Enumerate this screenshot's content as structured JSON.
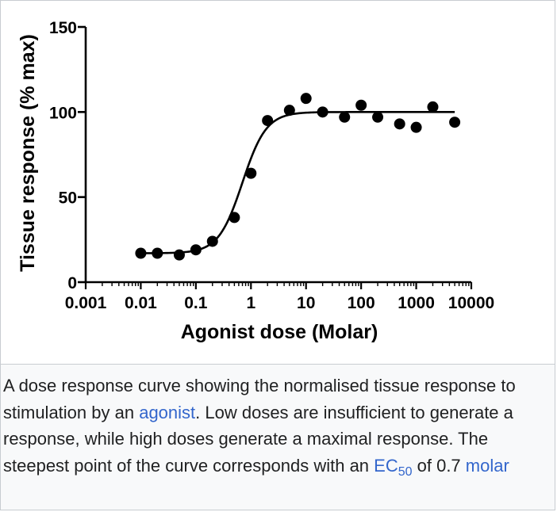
{
  "chart_data": {
    "type": "scatter",
    "title": "",
    "xlabel": "Agonist dose (Molar)",
    "ylabel": "Tissue response (% max)",
    "x_scale": "log",
    "xlim": [
      0.001,
      10000
    ],
    "ylim": [
      0,
      150
    ],
    "x_ticks": [
      0.001,
      0.01,
      0.1,
      1,
      10,
      100,
      1000,
      10000
    ],
    "x_tick_labels": [
      "0.001",
      "0.01",
      "0.1",
      "1",
      "10",
      "100",
      "1000",
      "10000"
    ],
    "y_ticks": [
      0,
      50,
      100,
      150
    ],
    "y_tick_labels": [
      "0",
      "50",
      "100",
      "150"
    ],
    "grid": false,
    "legend": "none",
    "marker_color": "#000000",
    "series": [
      {
        "points": [
          {
            "x": 0.01,
            "y": 17
          },
          {
            "x": 0.02,
            "y": 17
          },
          {
            "x": 0.05,
            "y": 16
          },
          {
            "x": 0.1,
            "y": 19
          },
          {
            "x": 0.2,
            "y": 24
          },
          {
            "x": 0.5,
            "y": 38
          },
          {
            "x": 1,
            "y": 64
          },
          {
            "x": 2,
            "y": 95
          },
          {
            "x": 5,
            "y": 101
          },
          {
            "x": 10,
            "y": 108
          },
          {
            "x": 20,
            "y": 100
          },
          {
            "x": 50,
            "y": 97
          },
          {
            "x": 100,
            "y": 104
          },
          {
            "x": 200,
            "y": 97
          },
          {
            "x": 500,
            "y": 93
          },
          {
            "x": 1000,
            "y": 91
          },
          {
            "x": 2000,
            "y": 103
          },
          {
            "x": 5000,
            "y": 94
          }
        ]
      }
    ],
    "fit_curve": {
      "bottom": 17,
      "top": 100,
      "ec50": 0.7,
      "hill": 2
    }
  },
  "caption": {
    "text_before": "A dose response curve showing the normalised tissue response to stimulation by an ",
    "link_agonist": "agonist",
    "text_middle": ". Low doses are insufficient to generate a response, while high doses generate a maximal response. The steepest point of the curve corresponds with an ",
    "link_ec": "EC",
    "link_ec_sub": "50",
    "text_of": " of 0.7 ",
    "link_molar": "molar"
  },
  "icons": {
    "enlarge": "magnify-clip-icon"
  }
}
